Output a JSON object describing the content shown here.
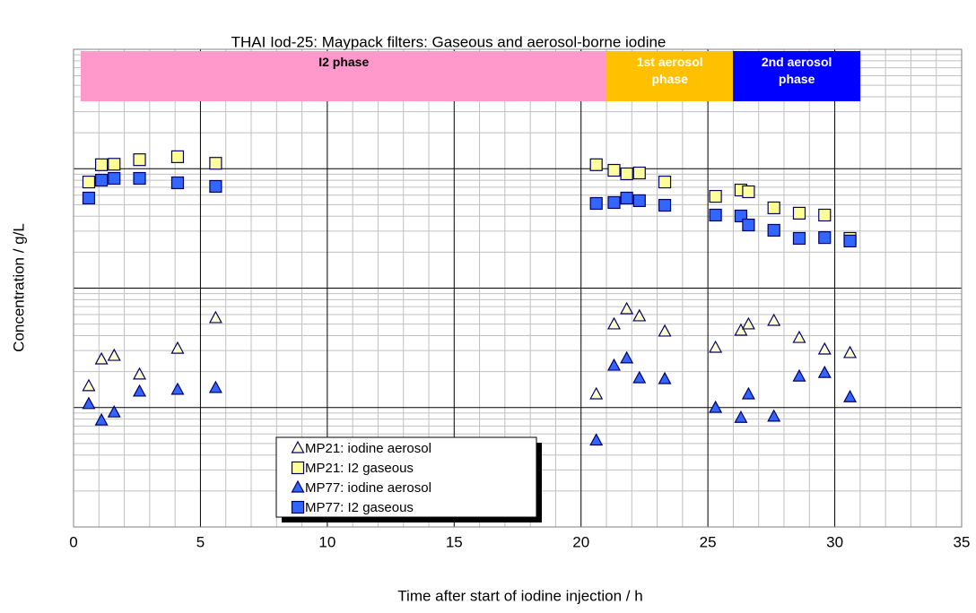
{
  "chart_data": {
    "type": "scatter",
    "title": "THAI Iod-25:  Maypack filters:  Gaseous and aerosol-borne iodine",
    "x_label": "Time after start of iodine injection / h",
    "y_label": "Concentration / g/L",
    "xlim": [
      0,
      35
    ],
    "xticks": [
      0,
      5,
      10,
      15,
      20,
      25,
      30,
      35
    ],
    "ylim": [
      1e-10,
      1e-06
    ],
    "yticks": [
      1e-10,
      1e-09,
      1e-08,
      1e-07,
      1e-06
    ],
    "y_scale": "log",
    "grid": true,
    "legend": "bottom-center",
    "phases": [
      {
        "label": "I2 phase",
        "start": 0.3,
        "end": 21,
        "color": "#ff99cc",
        "text_color": "#000000"
      },
      {
        "label": "1st aerosol phase",
        "start": 21,
        "end": 26,
        "color": "#ffc000",
        "text_color": "#ffffff"
      },
      {
        "label": "2nd aerosol phase",
        "start": 26,
        "end": 31,
        "color": "#0000ff",
        "text_color": "#ffffff"
      }
    ],
    "series": [
      {
        "name": "MP21:  iodine aerosol",
        "marker": "triangle",
        "color": "#ffffcc",
        "x": [
          0.6,
          1.1,
          1.6,
          2.6,
          4.1,
          5.6,
          20.6,
          21.3,
          21.8,
          22.3,
          23.3,
          25.3,
          26.3,
          26.6,
          27.6,
          28.6,
          29.6,
          30.6
        ],
        "values": [
          1.51e-09,
          2.53e-09,
          2.71e-09,
          1.89e-09,
          3.11e-09,
          5.61e-09,
          1.29e-09,
          4.97e-09,
          6.66e-09,
          5.81e-09,
          4.33e-09,
          3.17e-09,
          4.4e-09,
          4.97e-09,
          5.32e-09,
          3.83e-09,
          3.06e-09,
          2.86e-09
        ]
      },
      {
        "name": "MP21:  I2 gaseous",
        "marker": "square",
        "color": "#ffff99",
        "x": [
          0.6,
          1.1,
          1.6,
          2.6,
          4.1,
          5.6,
          20.6,
          21.3,
          21.8,
          22.3,
          23.3,
          25.3,
          26.3,
          26.6,
          27.6,
          28.6,
          29.6,
          30.6
        ],
        "values": [
          7.74e-08,
          1.08e-07,
          1.09e-07,
          1.19e-07,
          1.26e-07,
          1.11e-07,
          1.08e-07,
          9.7e-08,
          9.06e-08,
          9.21e-08,
          7.74e-08,
          5.87e-08,
          6.63e-08,
          6.41e-08,
          4.7e-08,
          4.24e-08,
          4.09e-08,
          2.61e-08
        ]
      },
      {
        "name": "MP77:  iodine aerosol",
        "marker": "triangle",
        "color": "#3366ff",
        "x": [
          0.6,
          1.1,
          1.6,
          2.6,
          4.1,
          5.6,
          20.6,
          21.3,
          21.8,
          22.3,
          23.3,
          25.3,
          26.3,
          26.6,
          27.6,
          28.6,
          29.6,
          30.6
        ],
        "values": [
          1.07e-09,
          7.8e-10,
          9.1e-10,
          1.36e-09,
          1.41e-09,
          1.46e-09,
          5.3e-10,
          2.24e-09,
          2.58e-09,
          1.76e-09,
          1.73e-09,
          9.95e-10,
          8.2e-10,
          1.29e-09,
          8.4e-10,
          1.82e-09,
          1.95e-09,
          1.22e-09
        ]
      },
      {
        "name": "MP77:  I2 gaseous",
        "marker": "square",
        "color": "#3366ff",
        "x": [
          0.6,
          1.1,
          1.6,
          2.6,
          4.1,
          5.6,
          20.6,
          21.3,
          21.8,
          22.3,
          23.3,
          25.3,
          26.3,
          26.6,
          27.6,
          28.6,
          29.6,
          30.6
        ],
        "values": [
          5.68e-08,
          8.02e-08,
          8.3e-08,
          8.3e-08,
          7.62e-08,
          7.11e-08,
          5.12e-08,
          5.21e-08,
          5.68e-08,
          5.4e-08,
          4.94e-08,
          4.09e-08,
          4.02e-08,
          3.38e-08,
          3.05e-08,
          2.61e-08,
          2.65e-08,
          2.48e-08
        ]
      }
    ]
  }
}
